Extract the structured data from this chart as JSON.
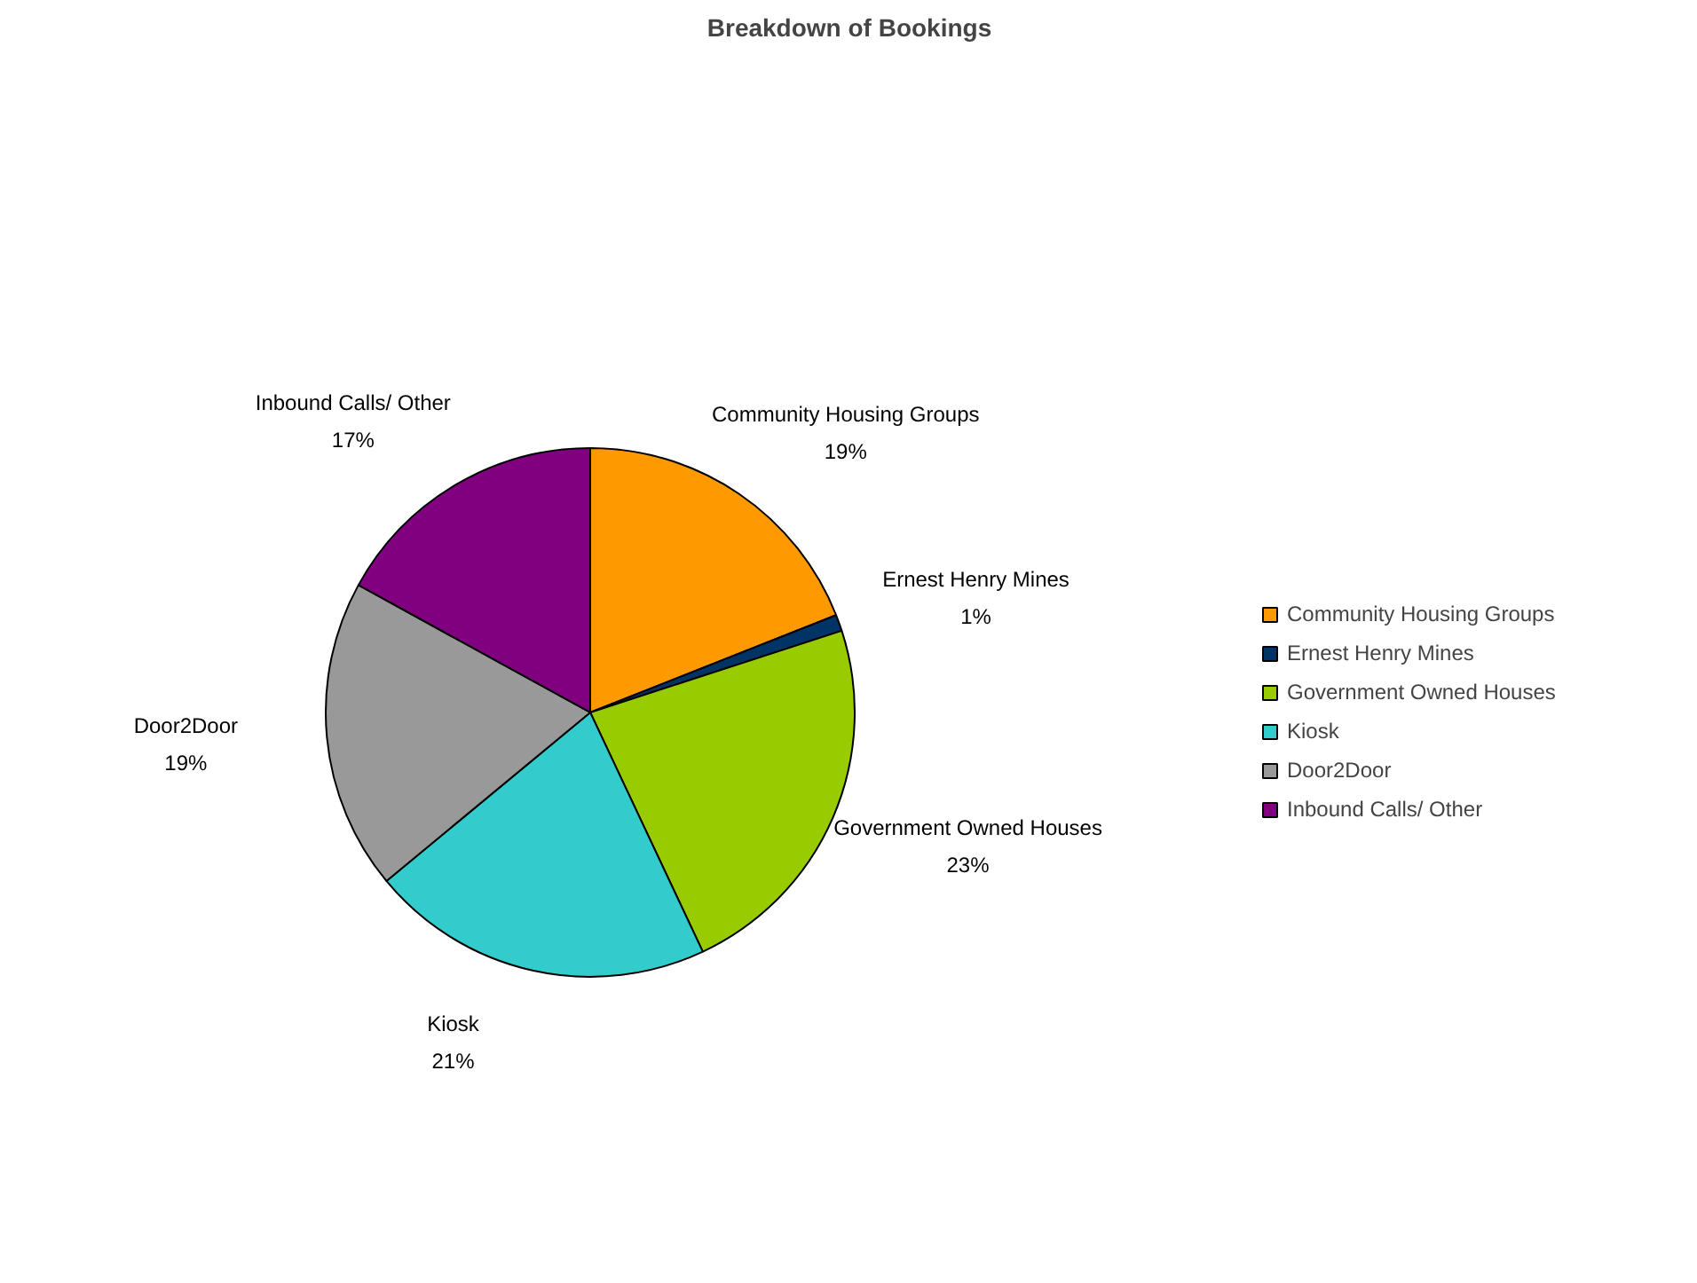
{
  "chart_data": {
    "type": "pie",
    "title": "Breakdown of Bookings",
    "categories": [
      "Community Housing Groups",
      "Ernest Henry Mines",
      "Government Owned Houses",
      "Kiosk",
      "Door2Door",
      "Inbound Calls/ Other"
    ],
    "values": [
      19,
      1,
      23,
      21,
      19,
      17
    ],
    "value_labels": [
      "19%",
      "1%",
      "23%",
      "21%",
      "19%",
      "17%"
    ],
    "colors": [
      "#ff9900",
      "#003366",
      "#99cc00",
      "#33cccc",
      "#999999",
      "#800080"
    ],
    "legend": "right"
  }
}
